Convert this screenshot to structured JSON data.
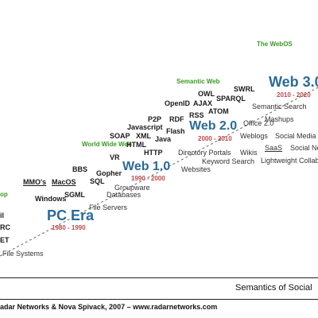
{
  "diagram": {
    "eras": [
      {
        "key": "webos",
        "name": "The WebOS",
        "dates": ""
      },
      {
        "key": "web30",
        "name": "Web 3.0",
        "dates": "2010 - 2020"
      },
      {
        "key": "web20",
        "name": "Web 2.0",
        "dates": "2000 - 2010"
      },
      {
        "key": "web10",
        "name": "Web 1.0",
        "dates": "1990 - 2000"
      },
      {
        "key": "pc",
        "name": "PC Era",
        "dates": "1980 - 1990"
      }
    ],
    "section_labels": {
      "semantic_web": "Semantic Web",
      "world_wide_web": "World Wide Web",
      "desktop_partial": "op"
    },
    "terms": {
      "owl": "OWL",
      "swrl": "SWRL",
      "openid": "OpenID",
      "ajax": "AJAX",
      "sparql": "SPARQL",
      "atom": "ATOM",
      "rss": "RSS",
      "p2p": "P2P",
      "rdf": "RDF",
      "javascript": "Javascript",
      "flash": "Flash",
      "soap": "SOAP",
      "xml": "XML",
      "java": "Java",
      "html": "HTML",
      "http": "HTTP",
      "vr": "VR",
      "bbs": "BBS",
      "gopher": "Gopher",
      "mmos": "MMO's",
      "macos": "MacOS",
      "sql": "SQL",
      "windows": "Windows",
      "sgml": "SGML",
      "il": "il",
      "rc": "RC",
      "et": "ET",
      "semantic_search": "Semantic Search",
      "mashups": "Mashups",
      "office20": "Office 2.0",
      "weblogs": "Weblogs",
      "social_media": "Social Media",
      "saas": "SaaS",
      "social_ne": "Social Ne",
      "lightweight": "Lightweight Collabo",
      "directory_portals": "Directory Portals",
      "wikis": "Wikis",
      "keyword_search": "Keyword Search",
      "websites": "Websites",
      "groupware": "Groupware",
      "databases": "Databases",
      "file_servers": "File Servers",
      "file_systems": "File Systems"
    },
    "axis_caption": "Semantics of Social",
    "credit": "adar Networks & Nova Spivack, 2007 – www.radarnetworks.com"
  }
}
